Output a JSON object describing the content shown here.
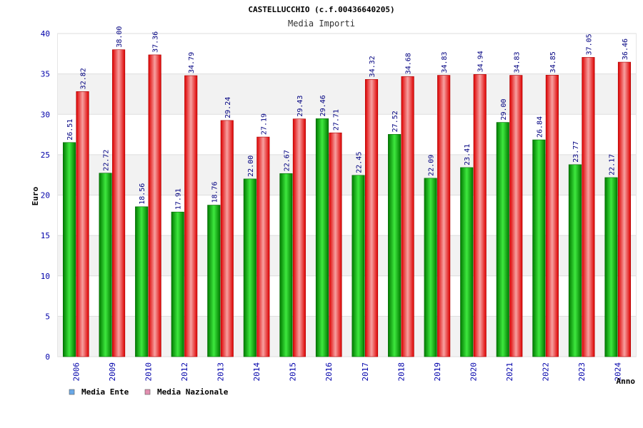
{
  "chart_data": {
    "type": "bar",
    "title": "CASTELLUCCHIO (c.f.00436640205)",
    "subtitle": "Media Importi",
    "xlabel": "Anno",
    "ylabel": "Euro",
    "ylim": [
      0,
      40
    ],
    "yticks": [
      0,
      5,
      10,
      15,
      20,
      25,
      30,
      35,
      40
    ],
    "grid": true,
    "legend_position": "bottom-left",
    "categories": [
      "2006",
      "2009",
      "2010",
      "2012",
      "2013",
      "2014",
      "2015",
      "2016",
      "2017",
      "2018",
      "2019",
      "2020",
      "2021",
      "2022",
      "2023",
      "2024"
    ],
    "series": [
      {
        "name": "Media Ente",
        "color": "#00b000",
        "legend_color": "#6aa9e8",
        "values": [
          26.51,
          22.72,
          18.56,
          17.91,
          18.76,
          22.0,
          22.67,
          29.46,
          22.45,
          27.52,
          22.09,
          23.41,
          29.0,
          26.84,
          23.77,
          22.17
        ],
        "labels": [
          "26.51",
          "22.72",
          "18.56",
          "17.91",
          "18.76",
          "22.00",
          "22.67",
          "29.46",
          "22.45",
          "27.52",
          "22.09",
          "23.41",
          "29.00",
          "26.84",
          "23.77",
          "22.17"
        ]
      },
      {
        "name": "Media Nazionale",
        "color": "#ee1111",
        "legend_color": "#e38fb0",
        "values": [
          32.82,
          38.0,
          37.36,
          34.79,
          29.24,
          27.19,
          29.43,
          27.71,
          34.32,
          34.68,
          34.83,
          34.94,
          34.83,
          34.85,
          37.05,
          36.46
        ],
        "labels": [
          "32.82",
          "38.00",
          "37.36",
          "34.79",
          "29.24",
          "27.19",
          "29.43",
          "27.71",
          "34.32",
          "34.68",
          "34.83",
          "34.94",
          "34.83",
          "34.85",
          "37.05",
          "36.46"
        ]
      }
    ]
  }
}
